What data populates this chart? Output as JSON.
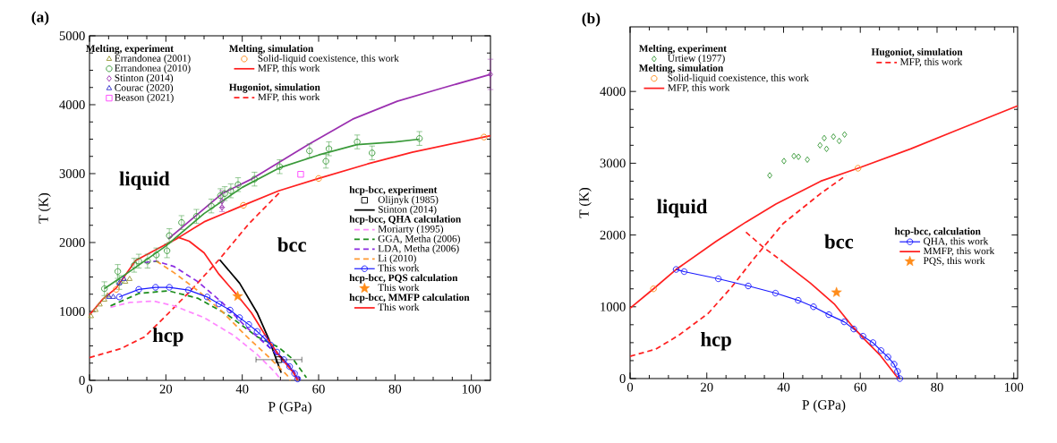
{
  "chart_data": [
    {
      "type": "line",
      "title": "(a)",
      "xlabel": "P (GPa)",
      "ylabel": "T (K)",
      "xlim": [
        0,
        105
      ],
      "ylim": [
        0,
        5000
      ],
      "xticks": [
        0,
        20,
        40,
        60,
        80,
        100
      ],
      "yticks": [
        0,
        1000,
        2000,
        3000,
        4000,
        5000
      ],
      "legend": "top left",
      "annotations": [
        "Melting, experiment",
        "Melting, simulation",
        "Hugoniot, simulation",
        "hcp-bcc, experiment",
        "hcp-bcc, QHA calculation",
        "hcp-bcc, PQS calculation",
        "hcp-bcc, MMFP calculation",
        "liquid",
        "bcc",
        "hcp"
      ],
      "series": [
        {
          "name": "Errandonea (2001)",
          "type": "scatter",
          "marker": "triangle",
          "color": "#9b9b3c",
          "x": [
            0.4,
            1.6,
            2.7,
            3.9,
            4.7,
            9.4,
            10.5
          ],
          "values": [
            930,
            1020,
            1100,
            1170,
            1230,
            1430,
            1470
          ]
        },
        {
          "name": "Errandonea (2010)",
          "type": "scatter",
          "marker": "circle",
          "color": "#3a9a3a",
          "x": [
            3.9,
            7.4,
            7.8,
            11.7,
            12.9,
            15.2,
            17.5,
            20.3,
            20.9,
            24.1,
            28.0,
            31.9,
            34.3,
            35.4,
            37.0,
            38.9,
            43.2,
            49.8,
            57.6,
            61.9,
            62.7,
            70.1,
            74.0,
            86.4
          ],
          "values": [
            1330,
            1580,
            1420,
            1670,
            1730,
            1730,
            1820,
            1880,
            2100,
            2290,
            2380,
            2530,
            2680,
            2710,
            2750,
            2840,
            2920,
            3100,
            3330,
            3180,
            3360,
            3460,
            3300,
            3510
          ],
          "errors": [
            100,
            100,
            100,
            100,
            100,
            100,
            100,
            100,
            100,
            100,
            100,
            100,
            100,
            100,
            100,
            100,
            100,
            100,
            100,
            100,
            100,
            100,
            100,
            100
          ]
        },
        {
          "name": "Stinton (2014)",
          "type": "scatter",
          "marker": "diamond",
          "color": "#9b30b0",
          "x": [
            34.7,
            34.7,
            105
          ],
          "values": [
            2600,
            2510,
            4440
          ],
          "errors": [
            150,
            null,
            220
          ]
        },
        {
          "name": "Courac (2020)",
          "type": "scatter",
          "marker": "triangle",
          "color": "#3333cc",
          "x": [
            5.1,
            6.2,
            7.8,
            9.0
          ],
          "values": [
            1210,
            1210,
            1410,
            1470
          ]
        },
        {
          "name": "Beason (2021)",
          "type": "scatter",
          "marker": "square",
          "color": "#ff44ff",
          "x": [
            55.3
          ],
          "values": [
            2990
          ]
        },
        {
          "name": "Solid-liquid coexistence, this work",
          "type": "scatter",
          "marker": "circle",
          "color": "#ff8c1a",
          "x": [
            7.0,
            40.3,
            60.0,
            103.3
          ],
          "values": [
            1320,
            2540,
            2930,
            3530
          ]
        },
        {
          "name": "MFP, this work",
          "line_style": "solid",
          "color": "#ff2020",
          "x": [
            0,
            3.5,
            7.0,
            12.1,
            17.5,
            23.0,
            30.0,
            40.3,
            49.5,
            60.0,
            72.8,
            84.5,
            103.3,
            105
          ],
          "values": [
            950,
            1180,
            1340,
            1740,
            1900,
            2060,
            2300,
            2540,
            2750,
            2930,
            3140,
            3310,
            3530,
            3550
          ]
        },
        {
          "name": "MFP, this work",
          "line_style": "dashed",
          "color": "#ff2020",
          "x": [
            0,
            8.2,
            14.4,
            20.6,
            26.1,
            33.9,
            41.7,
            50.2
          ],
          "values": [
            330,
            460,
            630,
            970,
            1280,
            1750,
            2270,
            2750
          ]
        },
        {
          "name": "Olijnyk (1985)",
          "type": "scatter",
          "marker": "square",
          "color": "#000000",
          "x": [
            49.6
          ],
          "values": [
            300
          ],
          "xerrors": [
            6
          ]
        },
        {
          "name": "Stinton (2014)",
          "line_style": "solid",
          "color": "#000000",
          "x": [
            34.1,
            39.3,
            44.0,
            47.1,
            50.2
          ],
          "values": [
            1750,
            1410,
            970,
            580,
            110
          ]
        },
        {
          "name": "Moriarty (1995)",
          "line_style": "dashed",
          "color": "#ff88ff",
          "x": [
            5.5,
            10.5,
            16.8,
            22.2,
            30.0,
            37.8,
            44.0,
            48.7,
            50.2
          ],
          "values": [
            1060,
            1130,
            1150,
            1080,
            910,
            650,
            370,
            110,
            0
          ]
        },
        {
          "name": "GGA, Metha (2006)",
          "line_style": "dashed",
          "color": "#1a8c1a",
          "x": [
            5.5,
            12.9,
            20.6,
            28.4,
            36.2,
            44.0,
            49.5,
            53.4,
            56.8
          ],
          "values": [
            1080,
            1260,
            1300,
            1190,
            950,
            630,
            480,
            300,
            40
          ]
        },
        {
          "name": "LDA, Metha (2006)",
          "line_style": "dashed",
          "color": "#8a2be2",
          "x": [
            14.4,
            17.5,
            22.2,
            28.4,
            34.7,
            40.9,
            47.1,
            52.6,
            54.9
          ],
          "values": [
            1710,
            1730,
            1650,
            1430,
            1130,
            780,
            480,
            200,
            20
          ]
        },
        {
          "name": "Li (2010)",
          "line_style": "dashed",
          "color": "#ff9933",
          "x": [
            17.5,
            22.2,
            28.4,
            34.7,
            40.9,
            47.1,
            51.8,
            52.6
          ],
          "values": [
            1730,
            1560,
            1300,
            1000,
            650,
            330,
            70,
            0
          ]
        },
        {
          "name": "This work",
          "line_style": "solid",
          "marker": "circle",
          "color": "#1a1aff",
          "x": [
            7.8,
            12.9,
            17.3,
            20.9,
            25.9,
            30.8,
            33.9,
            36.8,
            39.3,
            41.7,
            43.9,
            45.8,
            47.5,
            49.1,
            50.9,
            52.4,
            53.7,
            54.5
          ],
          "values": [
            1210,
            1320,
            1350,
            1350,
            1310,
            1210,
            1110,
            1020,
            910,
            810,
            710,
            610,
            510,
            410,
            300,
            200,
            100,
            20
          ]
        },
        {
          "name": "This work",
          "type": "scatter",
          "marker": "star",
          "color": "#ff8c1a",
          "x": [
            38.8
          ],
          "values": [
            1220
          ]
        },
        {
          "name": "This work",
          "line_style": "solid",
          "color": "#ff2020",
          "x": [
            23.0,
            26.1,
            30.0,
            33.9,
            38.9,
            42.4,
            46.3,
            49.5,
            53.4,
            54.5
          ],
          "values": [
            2080,
            2020,
            1850,
            1540,
            1220,
            980,
            630,
            370,
            110,
            0
          ]
        },
        {
          "line_style": "solid",
          "color": "#3a9a3a",
          "x": [
            3.9,
            10,
            20,
            30,
            40,
            50,
            60,
            70,
            80,
            86.4
          ],
          "values": [
            1330,
            1560,
            1950,
            2420,
            2800,
            3090,
            3270,
            3420,
            3460,
            3500
          ]
        },
        {
          "line_style": "solid",
          "color": "#9b30b0",
          "x": [
            20.6,
            34.7,
            42.4,
            49.5,
            57.2,
            68.9,
            80.6,
            92.3,
            105
          ],
          "values": [
            2050,
            2710,
            2920,
            3160,
            3420,
            3790,
            4050,
            4240,
            4440
          ]
        }
      ]
    },
    {
      "type": "line",
      "title": "(b)",
      "xlabel": "P (GPa)",
      "ylabel": "T (K)",
      "xlim": [
        0,
        101
      ],
      "ylim": [
        0,
        4900
      ],
      "xticks": [
        0,
        20,
        40,
        60,
        80,
        100
      ],
      "yticks": [
        0,
        1000,
        2000,
        3000,
        4000
      ],
      "legend": "top left",
      "annotations": [
        "Melting, experiment",
        "Melting, simulation",
        "Hugoniot, simulation",
        "hcp-bcc, calculation",
        "liquid",
        "bcc",
        "hcp"
      ],
      "series": [
        {
          "name": "Urtiew (1977)",
          "type": "scatter",
          "marker": "diamond",
          "color": "#3a9a3a",
          "x": [
            36.4,
            40.1,
            42.7,
            43.9,
            46.2,
            49.5,
            50.6,
            51.2,
            53.0,
            54.5,
            55.9
          ],
          "values": [
            2830,
            3030,
            3100,
            3090,
            3050,
            3250,
            3350,
            3200,
            3370,
            3310,
            3400
          ]
        },
        {
          "name": "Solid-liquid coexistence, this work",
          "type": "scatter",
          "marker": "circle",
          "color": "#ff8c1a",
          "x": [
            6.1,
            59.4
          ],
          "values": [
            1250,
            2930
          ]
        },
        {
          "name": "MFP, this work",
          "line_style": "solid",
          "color": "#ff2020",
          "x": [
            0,
            6.1,
            12.0,
            22.4,
            30.2,
            38.0,
            49.7,
            59.4,
            73.1,
            84.7,
            101
          ],
          "values": [
            980,
            1250,
            1520,
            1910,
            2180,
            2430,
            2750,
            2930,
            3200,
            3450,
            3800
          ]
        },
        {
          "name": "MFP, this work",
          "line_style": "dashed",
          "color": "#ff2020",
          "x": [
            0,
            6.7,
            12.6,
            20.4,
            26.7,
            32.1,
            39.9,
            49.7,
            56.3
          ],
          "values": [
            310,
            410,
            600,
            910,
            1290,
            1660,
            2160,
            2580,
            2830
          ]
        },
        {
          "name": "QHA, this work",
          "line_style": "solid",
          "marker": "circle",
          "color": "#1a1aff",
          "x": [
            12.0,
            14.1,
            23.0,
            30.8,
            37.9,
            43.8,
            47.8,
            51.8,
            55.8,
            58.3,
            60.7,
            63.3,
            65.4,
            67.2,
            68.8,
            69.7,
            70.3
          ],
          "values": [
            1520,
            1490,
            1390,
            1290,
            1190,
            1090,
            1000,
            890,
            790,
            690,
            590,
            500,
            390,
            300,
            200,
            100,
            0
          ]
        },
        {
          "name": "MMFP, this work",
          "line_style": "solid",
          "color": "#ff2020",
          "x": [
            40.0,
            47.0,
            53.2,
            57.9,
            61.2,
            65.1,
            69.9
          ],
          "values": [
            1620,
            1330,
            1040,
            730,
            540,
            330,
            0
          ]
        },
        {
          "name": "PQS, this work",
          "type": "scatter",
          "marker": "star",
          "color": "#ff8c1a",
          "x": [
            53.8
          ],
          "values": [
            1200
          ]
        },
        {
          "line_style": "dashed",
          "color": "#ff2020",
          "x": [
            30.2,
            34.7,
            40.0
          ],
          "values": [
            2040,
            1830,
            1620
          ]
        }
      ]
    }
  ]
}
